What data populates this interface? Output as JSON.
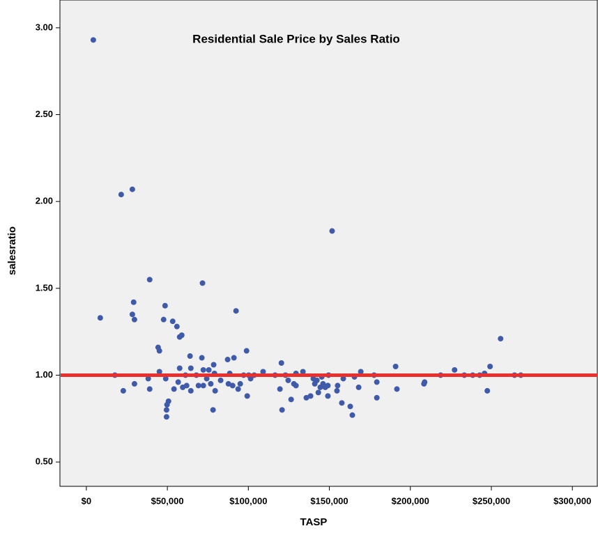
{
  "chart_data": {
    "type": "scatter",
    "title": "Residential Sale Price by Sales Ratio",
    "x_label": "TASP",
    "y_label": "salesratio",
    "color": "#3f5aa8",
    "x": [
      4300,
      8600,
      17600,
      21500,
      22800,
      28400,
      28400,
      29200,
      29700,
      29700,
      39100,
      38200,
      39100,
      44300,
      45100,
      45100,
      47700,
      48600,
      49000,
      49500,
      49500,
      49800,
      50700,
      53300,
      55900,
      57600,
      58900,
      56700,
      54100,
      57600,
      59500,
      61200,
      61900,
      64000,
      64500,
      64500,
      67900,
      69200,
      71300,
      71700,
      72200,
      72200,
      74300,
      75600,
      76800,
      78200,
      78600,
      79100,
      79500,
      82900,
      87200,
      87700,
      88500,
      90300,
      91100,
      92400,
      93700,
      95000,
      97100,
      98900,
      99300,
      100200,
      101400,
      103600,
      109100,
      116500,
      119500,
      120400,
      120800,
      122900,
      124600,
      126400,
      128100,
      129400,
      129400,
      133700,
      135800,
      138400,
      140100,
      141000,
      142300,
      143200,
      144400,
      145300,
      146100,
      147500,
      149100,
      149100,
      149500,
      151700,
      154700,
      155100,
      157700,
      158600,
      162900,
      164200,
      165500,
      168100,
      169400,
      177600,
      179300,
      179300,
      190900,
      191700,
      208400,
      208800,
      218700,
      227300,
      233300,
      238500,
      242800,
      245800,
      247500,
      249200,
      255700,
      264300,
      268200
    ],
    "values": [
      2.93,
      1.33,
      1.0,
      2.04,
      0.91,
      2.07,
      1.35,
      1.42,
      1.32,
      0.95,
      1.55,
      0.98,
      0.92,
      1.16,
      1.14,
      1.02,
      1.32,
      1.4,
      0.98,
      0.76,
      0.8,
      0.83,
      0.85,
      1.31,
      1.28,
      1.22,
      1.23,
      0.96,
      0.92,
      1.04,
      0.93,
      1.0,
      0.94,
      1.11,
      1.04,
      0.91,
      1.0,
      0.94,
      1.1,
      1.53,
      1.03,
      0.94,
      0.98,
      1.03,
      0.95,
      0.8,
      1.06,
      1.01,
      0.91,
      0.97,
      1.09,
      0.95,
      1.01,
      0.94,
      1.1,
      1.37,
      0.92,
      0.95,
      1.0,
      1.14,
      0.88,
      1.0,
      0.98,
      1.0,
      1.02,
      1.0,
      0.92,
      1.07,
      0.8,
      1.0,
      0.97,
      0.86,
      0.95,
      0.94,
      1.01,
      1.02,
      0.87,
      0.88,
      0.98,
      0.95,
      0.97,
      0.9,
      0.93,
      0.99,
      0.95,
      0.93,
      0.94,
      0.88,
      1.0,
      1.83,
      0.91,
      0.94,
      0.84,
      0.98,
      0.82,
      0.77,
      0.99,
      0.93,
      1.02,
      1.0,
      0.87,
      0.96,
      1.05,
      0.92,
      0.95,
      0.96,
      1.0,
      1.03,
      1.0,
      1.0,
      1.0,
      1.01,
      0.91,
      1.05,
      1.21,
      1.0,
      1.0
    ],
    "reference_line": {
      "value": 1,
      "color": "#e8312f"
    },
    "xlim": [
      -16300,
      315400
    ],
    "ylim": [
      0.36,
      3.16
    ],
    "xticks": [
      {
        "value": 0,
        "label": "$0"
      },
      {
        "value": 50000,
        "label": "$50,000"
      },
      {
        "value": 100000,
        "label": "$100,000"
      },
      {
        "value": 150000,
        "label": "$150,000"
      },
      {
        "value": 200000,
        "label": "$200,000"
      },
      {
        "value": 250000,
        "label": "$250,000"
      },
      {
        "value": 300000,
        "label": "$300,000"
      }
    ],
    "yticks": [
      {
        "value": 0.5,
        "label": "0.50"
      },
      {
        "value": 1,
        "label": "1.00"
      },
      {
        "value": 1.5,
        "label": "1.50"
      },
      {
        "value": 2,
        "label": "2.00"
      },
      {
        "value": 2.5,
        "label": "2.50"
      },
      {
        "value": 3,
        "label": "3.00"
      }
    ]
  }
}
